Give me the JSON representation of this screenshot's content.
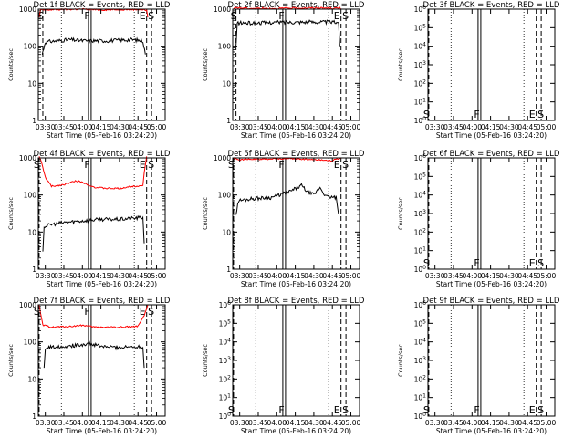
{
  "figure": {
    "xlabel": "Start Time (05-Feb-16 03:24:20)",
    "ylabel": "Counts/sec",
    "x_ticks": [
      "03:30",
      "03:45",
      "04:00",
      "04:15",
      "04:30",
      "04:45",
      "05:00"
    ],
    "colors": {
      "events": "#000000",
      "lld": "#ff0000"
    }
  },
  "chart_data": [
    {
      "type": "line",
      "title": "Det 1f BLACK = Events, RED = LLD",
      "x_range": [
        "03:24:20",
        "05:07:00"
      ],
      "y_scale": "log",
      "ylim": [
        1,
        1000
      ],
      "y_ticks": [
        "1",
        "10",
        "100",
        "1000"
      ],
      "markers": [
        {
          "label": "S",
          "x": "03:28"
        },
        {
          "label": "F",
          "x": "04:06"
        },
        {
          "label": "E",
          "x": "04:52"
        },
        {
          "label": "S",
          "x": "04:56"
        }
      ],
      "series": [
        {
          "name": "Events",
          "color": "#000000",
          "x": [
            "03:27:30",
            "03:30",
            "03:40",
            "03:50",
            "04:00",
            "04:10",
            "04:20",
            "04:30",
            "04:40",
            "04:49",
            "04:51"
          ],
          "y": [
            60,
            130,
            140,
            150,
            140,
            140,
            140,
            145,
            150,
            140,
            60
          ]
        },
        {
          "name": "LLD",
          "color": "#ff0000",
          "x": [
            "03:25",
            "03:26",
            "03:30",
            "03:45",
            "04:00",
            "04:15",
            "04:30",
            "04:45",
            "04:52",
            "04:53"
          ],
          "y": [
            600,
            950,
            950,
            980,
            1000,
            950,
            980,
            980,
            950,
            600
          ]
        }
      ]
    },
    {
      "type": "line",
      "title": "Det 2f BLACK = Events, RED = LLD",
      "x_range": [
        "03:24:20",
        "05:07:00"
      ],
      "y_scale": "log",
      "ylim": [
        1,
        1000
      ],
      "y_ticks": [
        "1",
        "10",
        "100",
        "1000"
      ],
      "markers": [
        {
          "label": "S",
          "x": "03:27"
        },
        {
          "label": "F",
          "x": "04:06"
        },
        {
          "label": "E",
          "x": "04:52"
        },
        {
          "label": "S",
          "x": "04:56"
        }
      ],
      "series": [
        {
          "name": "Events",
          "color": "#000000",
          "x": [
            "03:27",
            "03:28",
            "03:40",
            "04:00",
            "04:20",
            "04:40",
            "04:50",
            "04:51"
          ],
          "y": [
            100,
            420,
            420,
            440,
            450,
            450,
            440,
            100
          ]
        },
        {
          "name": "LLD",
          "color": "#ff0000",
          "x": [
            "03:25",
            "03:26",
            "03:27",
            "03:35",
            "04:00",
            "04:30",
            "04:50",
            "04:51",
            "04:53"
          ],
          "y": [
            1000,
            1100,
            1100,
            1050,
            1050,
            1080,
            1050,
            1100,
            1000
          ]
        }
      ]
    },
    {
      "type": "line",
      "title": "Det 3f BLACK = Events, RED = LLD",
      "x_range": [
        "03:24:20",
        "05:07:00"
      ],
      "y_scale": "log",
      "ylim": [
        1,
        1000000
      ],
      "y_ticks": [
        "10^0",
        "10^1",
        "10^2",
        "10^3",
        "10^4",
        "10^5",
        "10^6"
      ],
      "markers": [
        {
          "label": "S",
          "x": "03:25"
        },
        {
          "label": "F",
          "x": "04:06"
        },
        {
          "label": "E",
          "x": "04:52"
        },
        {
          "label": "S",
          "x": "04:56"
        }
      ],
      "series": []
    },
    {
      "type": "line",
      "title": "Det 4f BLACK = Events, RED = LLD",
      "x_range": [
        "03:24:20",
        "05:07:00"
      ],
      "y_scale": "log",
      "ylim": [
        1,
        1000
      ],
      "y_ticks": [
        "1",
        "10",
        "100",
        "1000"
      ],
      "markers": [
        {
          "label": "S",
          "x": "03:25"
        },
        {
          "label": "F",
          "x": "04:06"
        },
        {
          "label": "E",
          "x": "04:52"
        },
        {
          "label": "S",
          "x": "04:56"
        }
      ],
      "series": [
        {
          "name": "Events",
          "color": "#000000",
          "x": [
            "03:28",
            "03:29",
            "03:35",
            "03:45",
            "04:00",
            "04:15",
            "04:30",
            "04:45",
            "04:49",
            "04:50"
          ],
          "y": [
            3,
            14,
            16,
            18,
            20,
            22,
            22,
            24,
            25,
            5
          ]
        },
        {
          "name": "LLD",
          "color": "#ff0000",
          "x": [
            "03:25",
            "03:26",
            "03:30",
            "03:35",
            "03:45",
            "03:55",
            "04:00",
            "04:10",
            "04:20",
            "04:30",
            "04:40",
            "04:49",
            "04:50",
            "04:52"
          ],
          "y": [
            1100,
            950,
            300,
            170,
            190,
            240,
            220,
            160,
            150,
            150,
            170,
            180,
            400,
            1100
          ]
        }
      ]
    },
    {
      "type": "line",
      "title": "Det 5f BLACK = Events, RED = LLD",
      "x_range": [
        "03:24:20",
        "05:07:00"
      ],
      "y_scale": "log",
      "ylim": [
        1,
        1000
      ],
      "y_ticks": [
        "1",
        "10",
        "100",
        "1000"
      ],
      "markers": [
        {
          "label": "S",
          "x": "03:25"
        },
        {
          "label": "F",
          "x": "04:06"
        },
        {
          "label": "E",
          "x": "04:52"
        },
        {
          "label": "S",
          "x": "04:56"
        }
      ],
      "series": [
        {
          "name": "Events",
          "color": "#000000",
          "x": [
            "03:27",
            "03:29",
            "03:40",
            "03:55",
            "04:10",
            "04:20",
            "04:25",
            "04:30",
            "04:35",
            "04:40",
            "04:48",
            "04:50"
          ],
          "y": [
            30,
            70,
            80,
            85,
            120,
            180,
            120,
            100,
            160,
            90,
            85,
            30
          ]
        },
        {
          "name": "LLD",
          "color": "#ff0000",
          "x": [
            "03:25",
            "03:30",
            "03:45",
            "04:00",
            "04:15",
            "04:30",
            "04:45",
            "04:52"
          ],
          "y": [
            1000,
            900,
            920,
            950,
            950,
            900,
            850,
            1000
          ]
        }
      ]
    },
    {
      "type": "line",
      "title": "Det 6f BLACK = Events, RED = LLD",
      "x_range": [
        "03:24:20",
        "05:07:00"
      ],
      "y_scale": "log",
      "ylim": [
        1,
        1000000
      ],
      "y_ticks": [
        "10^0",
        "10^1",
        "10^2",
        "10^3",
        "10^4",
        "10^5",
        "10^6"
      ],
      "markers": [
        {
          "label": "S",
          "x": "03:25"
        },
        {
          "label": "F",
          "x": "04:06"
        },
        {
          "label": "E",
          "x": "04:52"
        },
        {
          "label": "S",
          "x": "04:56"
        }
      ],
      "series": []
    },
    {
      "type": "line",
      "title": "Det 7f BLACK = Events, RED = LLD",
      "x_range": [
        "03:24:20",
        "05:07:00"
      ],
      "y_scale": "log",
      "ylim": [
        1,
        1000
      ],
      "y_ticks": [
        "1",
        "10",
        "100",
        "1000"
      ],
      "markers": [
        {
          "label": "S",
          "x": "03:25"
        },
        {
          "label": "F",
          "x": "04:06"
        },
        {
          "label": "E",
          "x": "04:52"
        },
        {
          "label": "S",
          "x": "04:56"
        }
      ],
      "series": [
        {
          "name": "Events",
          "color": "#000000",
          "x": [
            "03:29",
            "03:30",
            "03:40",
            "03:55",
            "04:05",
            "04:15",
            "04:30",
            "04:45",
            "04:49",
            "04:50"
          ],
          "y": [
            20,
            70,
            75,
            80,
            90,
            75,
            70,
            75,
            70,
            20
          ]
        },
        {
          "name": "LLD",
          "color": "#ff0000",
          "x": [
            "03:25",
            "03:26",
            "03:28",
            "03:35",
            "03:50",
            "04:00",
            "04:10",
            "04:20",
            "04:30",
            "04:45",
            "04:50",
            "04:53"
          ],
          "y": [
            1000,
            600,
            280,
            250,
            260,
            280,
            250,
            250,
            250,
            260,
            500,
            1000
          ]
        }
      ]
    },
    {
      "type": "line",
      "title": "Det 8f BLACK = Events, RED = LLD",
      "x_range": [
        "03:24:20",
        "05:07:00"
      ],
      "y_scale": "log",
      "ylim": [
        1,
        1000000
      ],
      "y_ticks": [
        "10^0",
        "10^1",
        "10^2",
        "10^3",
        "10^4",
        "10^5",
        "10^6"
      ],
      "markers": [
        {
          "label": "S",
          "x": "03:25"
        },
        {
          "label": "F",
          "x": "04:06"
        },
        {
          "label": "E",
          "x": "04:52"
        },
        {
          "label": "S",
          "x": "04:56"
        }
      ],
      "series": []
    },
    {
      "type": "line",
      "title": "Det 9f BLACK = Events, RED = LLD",
      "x_range": [
        "03:24:20",
        "05:07:00"
      ],
      "y_scale": "log",
      "ylim": [
        1,
        1000000
      ],
      "y_ticks": [
        "10^0",
        "10^1",
        "10^2",
        "10^3",
        "10^4",
        "10^5",
        "10^6"
      ],
      "markers": [
        {
          "label": "S",
          "x": "03:25"
        },
        {
          "label": "F",
          "x": "04:06"
        },
        {
          "label": "E",
          "x": "04:52"
        },
        {
          "label": "S",
          "x": "04:56"
        }
      ],
      "series": []
    }
  ]
}
